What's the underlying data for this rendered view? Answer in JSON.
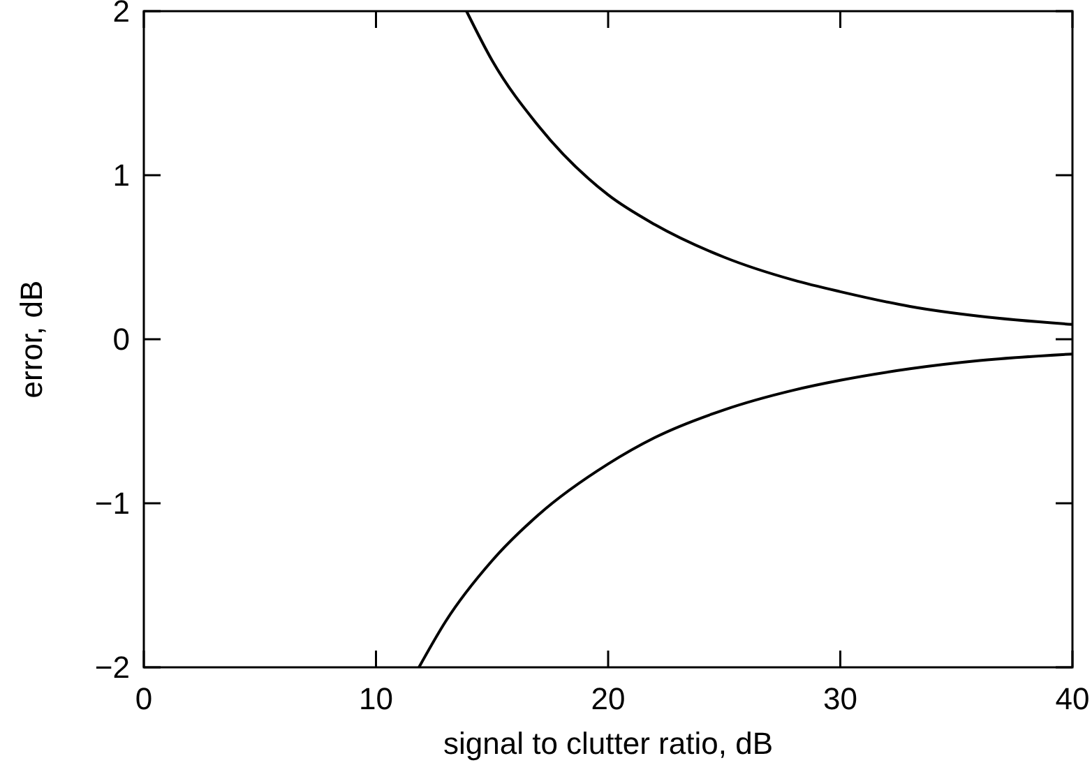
{
  "chart_data": {
    "type": "line",
    "xlabel": "signal to clutter ratio, dB",
    "ylabel": "error, dB",
    "xlim": [
      0,
      40
    ],
    "ylim": [
      -2,
      2
    ],
    "xticks": [
      0,
      10,
      20,
      30,
      40
    ],
    "yticks": [
      {
        "value": -2,
        "label": "−2"
      },
      {
        "value": -1,
        "label": "−1"
      },
      0,
      1,
      2
    ],
    "grid": false,
    "line_style": "solid",
    "series": [
      {
        "color": "#000000",
        "x": [
          13.9,
          15,
          17,
          20,
          22,
          25,
          28,
          30,
          33,
          36,
          40
        ],
        "values": [
          2,
          1.7,
          1.3,
          0.88,
          0.7,
          0.5,
          0.36,
          0.29,
          0.2,
          0.14,
          0.09
        ]
      },
      {
        "color": "#000000",
        "x": [
          11.85,
          13,
          15,
          17,
          20,
          22,
          25,
          28,
          30,
          33,
          36,
          40
        ],
        "values": [
          -2,
          -1.72,
          -1.35,
          -1.07,
          -0.76,
          -0.6,
          -0.43,
          -0.31,
          -0.25,
          -0.18,
          -0.13,
          -0.09
        ]
      }
    ]
  }
}
